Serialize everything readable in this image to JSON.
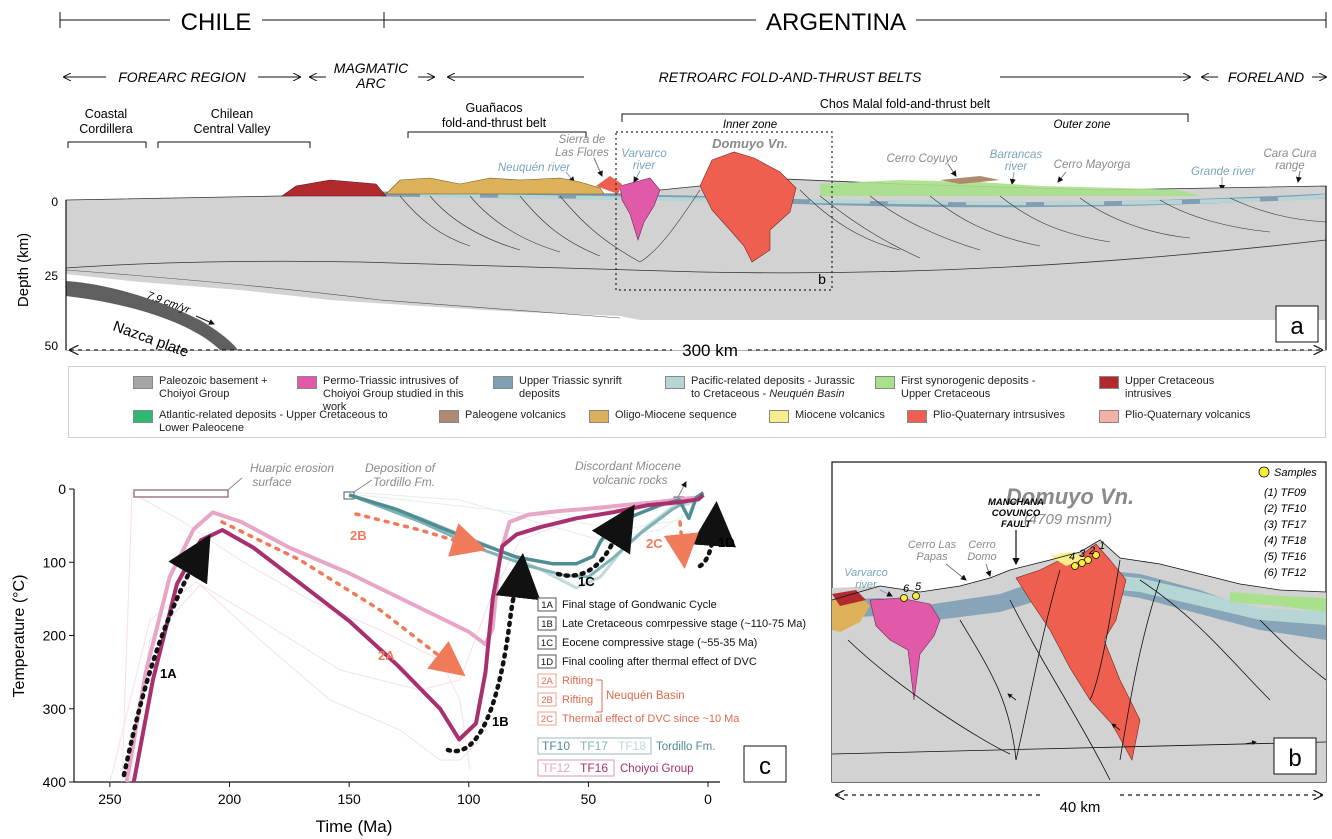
{
  "header": {
    "chile": "CHILE",
    "argentina": "ARGENTINA",
    "forearc": "FOREARC REGION",
    "magmatic_arc_1": "MAGMATIC",
    "magmatic_arc_2": "ARC",
    "retroarc": "RETROARC FOLD-AND-THRUST BELTS",
    "foreland": "FORELAND"
  },
  "section_a": {
    "coastal_1": "Coastal",
    "coastal_2": "Cordillera",
    "central_1": "Chilean",
    "central_2": "Central Valley",
    "guanacos_1": "Guañacos",
    "guanacos_2": "fold-and-thrust belt",
    "chos_malal": "Chos Malal fold-and-thrust belt",
    "inner_zone": "Inner zone",
    "outer_zone": "Outer zone",
    "sierra_1": "Sierra de",
    "sierra_2": "Las Flores",
    "neuquen_river": "Neuquén river",
    "varvarco_1": "Varvarco",
    "varvarco_2": "river",
    "domuyo": "Domuyo Vn.",
    "cerro_coyuyo": "Cerro Coyuyo",
    "barrancas_1": "Barrancas",
    "barrancas_2": "river",
    "cerro_mayorga": "Cerro Mayorga",
    "grande_river": "Grande river",
    "cara_cura_1": "Cara Cura",
    "cara_cura_2": "range",
    "depth_label": "Depth (km)",
    "depth_ticks": [
      "0",
      "25",
      "50"
    ],
    "nazca": "Nazca plate",
    "rate": "7.9 cm/yr",
    "scale": "300 km",
    "box_label": "b",
    "panel": "a"
  },
  "legend": [
    {
      "label": "Paleozoic basement + Choiyoi Group",
      "color": "#a6a6a6"
    },
    {
      "label": "Permo-Triassic intrusives of Choiyoi Group studied in this work",
      "color": "#e05aa8"
    },
    {
      "label": "Upper Triassic synrift deposits",
      "color": "#7f9fb5"
    },
    {
      "label_1": "Pacific-related deposits - Jurassic to Cretaceous - ",
      "label_2": "Neuquén Basin",
      "color": "#b5d6d4"
    },
    {
      "label": "First synorogenic deposits - Upper Cretaceous",
      "color": "#a8e08c"
    },
    {
      "label": "Upper Cretaceous intrusives",
      "color": "#b22a2e"
    },
    {
      "label": "Atlantic-related deposits - Upper Cretaceous to Lower Paleocene",
      "color": "#2eb872"
    },
    {
      "label": "Paleogene volcanics",
      "color": "#b08a70"
    },
    {
      "label": "Oligo-Miocene sequence",
      "color": "#ddb15a"
    },
    {
      "label": "Miocene volcanics",
      "color": "#f6ee8a"
    },
    {
      "label": "Plio-Quaternary intrsusives",
      "color": "#ef5f50"
    },
    {
      "label": "Plio-Quaternary volcanics",
      "color": "#f4b2a6"
    }
  ],
  "chart_data": {
    "type": "line",
    "xlabel": "Time (Ma)",
    "ylabel": "Temperature (°C)",
    "xlim": [
      265,
      -5
    ],
    "ylim": [
      400,
      0
    ],
    "x_ticks": [
      "250",
      "200",
      "150",
      "100",
      "50",
      "0"
    ],
    "y_ticks": [
      "0",
      "100",
      "200",
      "300",
      "400"
    ],
    "series": [
      {
        "name": "TF12",
        "color": "#e8a6c7",
        "x": [
          243,
          235,
          225,
          215,
          207,
          195,
          175,
          150,
          125,
          100,
          93,
          90,
          87,
          83,
          75,
          62,
          50,
          35,
          22,
          12,
          5,
          2
        ],
        "y": [
          400,
          250,
          120,
          55,
          32,
          45,
          80,
          115,
          155,
          195,
          212,
          190,
          90,
          45,
          35,
          30,
          27,
          22,
          18,
          14,
          12,
          8
        ]
      },
      {
        "name": "TF16",
        "color": "#a8306f",
        "x": [
          240,
          232,
          222,
          212,
          203,
          190,
          170,
          150,
          130,
          112,
          104,
          97,
          93,
          90,
          86,
          80,
          70,
          55,
          40,
          25,
          12,
          4,
          2
        ],
        "y": [
          400,
          260,
          130,
          70,
          56,
          80,
          130,
          180,
          240,
          300,
          342,
          320,
          250,
          150,
          78,
          62,
          52,
          40,
          32,
          22,
          18,
          14,
          8
        ]
      },
      {
        "name": "TF10",
        "color": "#4f8d93",
        "x": [
          150,
          130,
          110,
          95,
          80,
          65,
          55,
          48,
          45,
          40,
          30,
          20,
          12,
          8,
          5,
          2
        ],
        "y": [
          8,
          28,
          55,
          75,
          93,
          102,
          102,
          92,
          72,
          50,
          35,
          22,
          15,
          40,
          12,
          5
        ]
      },
      {
        "name": "TF17",
        "color": "#7fb2b5",
        "x": [
          150,
          120,
          95,
          75,
          60,
          50,
          40,
          28,
          15,
          8,
          4,
          2
        ],
        "y": [
          8,
          45,
          82,
          105,
          118,
          120,
          95,
          60,
          28,
          15,
          10,
          5
        ]
      },
      {
        "name": "TF18",
        "color": "#c0dad9",
        "x": [
          150,
          120,
          90,
          70,
          55,
          45,
          35,
          25,
          15,
          8,
          2
        ],
        "y": [
          8,
          40,
          80,
          110,
          135,
          120,
          80,
          50,
          25,
          20,
          5
        ]
      }
    ],
    "annotations": {
      "huarpic_1": "Huarpic erosion",
      "huarpic_2": "surface",
      "tordillo_1": "Deposition of",
      "tordillo_2": "Tordillo Fm.",
      "discordant_1": "Discordant Miocene",
      "discordant_2": "volcanic rocks",
      "l1A": "1A",
      "l1B": "1B",
      "l1C": "1C",
      "l1D": "1D",
      "l2A": "2A",
      "l2B": "2B",
      "l2C": "2C",
      "panel": "c"
    },
    "stages": [
      {
        "code": "1A",
        "text": "Final stage of Gondwanic Cycle"
      },
      {
        "code": "1B",
        "text": "Late Cretaceous comrpessive stage (~110-75 Ma)"
      },
      {
        "code": "1C",
        "text": "Eocene compressive stage (~55-35 Ma)"
      },
      {
        "code": "1D",
        "text": "Final cooling after thermal effect of DVC"
      },
      {
        "code": "2A",
        "text": "Rifting"
      },
      {
        "code": "2B",
        "text": "Rifting"
      },
      {
        "code": "2C",
        "text": "Thermal effect of DVC since ~10 Ma"
      }
    ],
    "neuquen_basin": "Neuquén Basin",
    "tordillo_group": {
      "samples": [
        "TF10",
        "TF17",
        "TF18"
      ],
      "label": "Tordillo Fm."
    },
    "choiyoi_group": {
      "samples": [
        "TF12",
        "TF16"
      ],
      "label": "Choiyoi Group"
    }
  },
  "section_b": {
    "title": "Domuyo Vn.",
    "elevation": "(4709 msnm)",
    "fault_1": "MANCHANA",
    "fault_2": "COVUNCO",
    "fault_3": "FAULT",
    "cerro_las_papas_1": "Cerro Las",
    "cerro_las_papas_2": "Papas",
    "cerro_domo_1": "Cerro",
    "cerro_domo_2": "Domo",
    "varvarco_1": "Varvarco",
    "varvarco_2": "river",
    "samples_title": "Samples",
    "samples": [
      "(1) TF09",
      "(2) TF10",
      "(3) TF17",
      "(4) TF18",
      "(5) TF16",
      "(6) TF12"
    ],
    "sample_numbers": [
      "1",
      "2",
      "3",
      "4",
      "5",
      "6"
    ],
    "scale": "40 km",
    "panel": "b"
  }
}
